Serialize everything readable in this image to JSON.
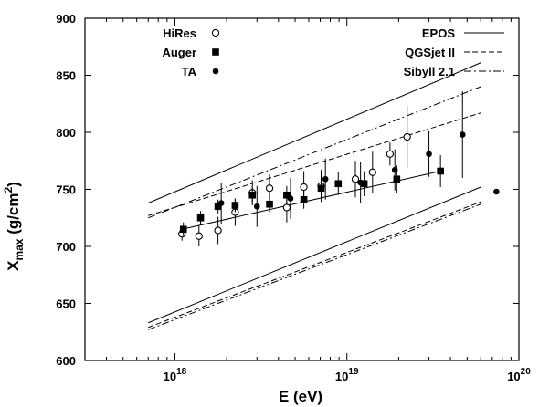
{
  "chart_data": {
    "type": "scatter",
    "title": "",
    "xlabel": "E (eV)",
    "ylabel": {
      "main": "X",
      "sub": "max",
      "unit_prefix": " (g/cm",
      "unit_sup": "2",
      "unit_suffix": ")"
    },
    "xscale": "log",
    "xlim": [
      3e+17,
      1e+20
    ],
    "ylim": [
      600,
      900
    ],
    "yticks": [
      "600",
      "650",
      "700",
      "750",
      "800",
      "850",
      "900"
    ],
    "xticks": [
      {
        "x": 1e+18,
        "base": "10",
        "exp": "18"
      },
      {
        "x": 1e+19,
        "base": "10",
        "exp": "19"
      },
      {
        "x": 1e+20,
        "base": "10",
        "exp": "20"
      }
    ],
    "legend_left": "top-left",
    "legend_right": "top-right",
    "series": [
      {
        "name": "HiRes",
        "kind": "points",
        "marker": "circle-open",
        "points": [
          {
            "x": 1.1e+18,
            "y": 711,
            "err": 6
          },
          {
            "x": 1.38e+18,
            "y": 709,
            "err": 9
          },
          {
            "x": 1.78e+18,
            "y": 714,
            "err": 12
          },
          {
            "x": 2.24e+18,
            "y": 730,
            "err": 12
          },
          {
            "x": 2.82e+18,
            "y": 747,
            "err": 11
          },
          {
            "x": 3.55e+18,
            "y": 751,
            "err": 12
          },
          {
            "x": 4.47e+18,
            "y": 734,
            "err": 13
          },
          {
            "x": 5.62e+18,
            "y": 752,
            "err": 14
          },
          {
            "x": 7.08e+18,
            "y": 753,
            "err": 14
          },
          {
            "x": 1.12e+19,
            "y": 759,
            "err": 16
          },
          {
            "x": 1.41e+19,
            "y": 765,
            "err": 18
          },
          {
            "x": 1.78e+19,
            "y": 781,
            "err": 10
          },
          {
            "x": 2.24e+19,
            "y": 796,
            "err": 27
          }
        ]
      },
      {
        "name": "Auger",
        "kind": "points",
        "marker": "square-filled",
        "points": [
          {
            "x": 1.12e+18,
            "y": 715,
            "err": 6
          },
          {
            "x": 1.41e+18,
            "y": 725,
            "err": 6
          },
          {
            "x": 1.78e+18,
            "y": 735,
            "err": 6
          },
          {
            "x": 2.24e+18,
            "y": 736,
            "err": 6
          },
          {
            "x": 2.82e+18,
            "y": 745,
            "err": 7
          },
          {
            "x": 3.55e+18,
            "y": 737,
            "err": 7
          },
          {
            "x": 4.47e+18,
            "y": 745,
            "err": 8
          },
          {
            "x": 5.62e+18,
            "y": 741,
            "err": 8
          },
          {
            "x": 7.08e+18,
            "y": 751,
            "err": 9
          },
          {
            "x": 8.91e+18,
            "y": 755,
            "err": 10
          },
          {
            "x": 1.26e+19,
            "y": 755,
            "err": 11
          },
          {
            "x": 1.95e+19,
            "y": 759,
            "err": 12
          },
          {
            "x": 3.5e+19,
            "y": 766,
            "err": 14
          }
        ]
      },
      {
        "name": "TA",
        "kind": "points",
        "marker": "circle-filled",
        "points": [
          {
            "x": 1.86e+18,
            "y": 738,
            "err": 18
          },
          {
            "x": 3e+18,
            "y": 735,
            "err": 18
          },
          {
            "x": 4.7e+18,
            "y": 742,
            "err": 18
          },
          {
            "x": 7.5e+18,
            "y": 759,
            "err": 18
          },
          {
            "x": 1.2e+19,
            "y": 756,
            "err": 18
          },
          {
            "x": 1.9e+19,
            "y": 767,
            "err": 18
          },
          {
            "x": 3e+19,
            "y": 781,
            "err": 20
          },
          {
            "x": 4.7e+19,
            "y": 798,
            "err": 38
          },
          {
            "x": 7.4e+19,
            "y": 748,
            "err": 0
          }
        ]
      },
      {
        "name": "EPOS",
        "kind": "line",
        "style": "solid",
        "lines": [
          [
            [
              7e+17,
              738
            ],
            [
              6e+19,
              861
            ]
          ],
          [
            [
              7e+17,
              633
            ],
            [
              6e+19,
              752
            ]
          ]
        ]
      },
      {
        "name": "QGSjet II",
        "kind": "line",
        "style": "dashed",
        "lines": [
          [
            [
              7e+17,
              727
            ],
            [
              6e+19,
              817
            ]
          ],
          [
            [
              7e+17,
              629
            ],
            [
              6e+19,
              739
            ]
          ]
        ]
      },
      {
        "name": "Sibyll 2.1",
        "kind": "line",
        "style": "dashdot",
        "lines": [
          [
            [
              7e+17,
              725
            ],
            [
              6e+19,
              840
            ]
          ],
          [
            [
              7e+17,
              627
            ],
            [
              6e+19,
              737
            ]
          ]
        ]
      },
      {
        "name": "",
        "kind": "line",
        "style": "solid",
        "lines": [
          [
            [
              1.1e+18,
              715
            ],
            [
              3.5e+19,
              766
            ]
          ]
        ]
      }
    ]
  }
}
